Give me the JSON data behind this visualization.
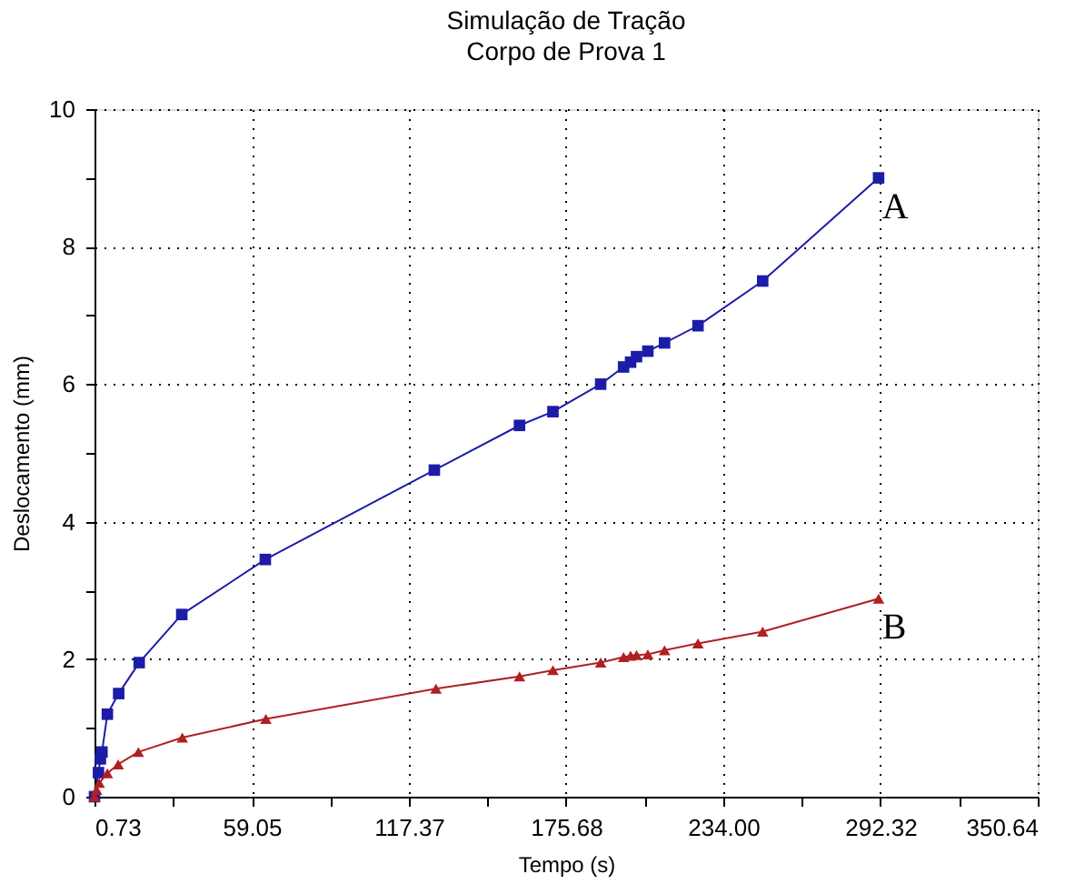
{
  "chart_data": {
    "type": "line",
    "title": "Simulação de Tração",
    "subtitle": "Corpo de Prova 1",
    "xlabel": "Tempo (s)",
    "ylabel": "Deslocamento (mm)",
    "xlim": [
      0.73,
      350.64
    ],
    "ylim": [
      0,
      10
    ],
    "xticks": [
      0.73,
      {
        "value": 29.89,
        "label": null
      },
      59.05,
      {
        "value": 88.21,
        "label": null
      },
      117.37,
      {
        "value": 146.53,
        "label": null
      },
      175.68,
      {
        "value": 204.84,
        "label": null
      },
      {
        "value": 234,
        "label": "234.00"
      },
      {
        "value": 263.16,
        "label": null
      },
      292.32,
      {
        "value": 321.48,
        "label": null
      },
      350.64
    ],
    "yticks": [
      0,
      {
        "value": 1,
        "label": null
      },
      2,
      {
        "value": 3,
        "label": null
      },
      4,
      {
        "value": 5,
        "label": null
      },
      6,
      {
        "value": 7,
        "label": null
      },
      8,
      {
        "value": 9,
        "label": null
      },
      10
    ],
    "grid": true,
    "line_style": "solid",
    "series": [
      {
        "name": "A",
        "color": "#1c1ca8",
        "marker": "square",
        "x": [
          0.73,
          2.2,
          2.9,
          3.5,
          5.5,
          9.7,
          17.3,
          33.1,
          64.1,
          126.8,
          158.4,
          170.8,
          188.5,
          197,
          199.6,
          201.8,
          206,
          212.2,
          224.6,
          248.6,
          291.6
        ],
        "values": [
          0,
          0.35,
          0.55,
          0.65,
          1.2,
          1.5,
          1.95,
          2.65,
          3.45,
          4.75,
          5.4,
          5.6,
          6.0,
          6.25,
          6.32,
          6.4,
          6.48,
          6.6,
          6.85,
          7.5,
          9.0
        ]
      },
      {
        "name": "B",
        "color": "#b02020",
        "marker": "triangle",
        "x": [
          0.73,
          1.5,
          2.5,
          5.5,
          9.5,
          17,
          33.3,
          64.3,
          127.4,
          158.4,
          170.8,
          188.5,
          197,
          199.6,
          201.8,
          206,
          212.2,
          224.6,
          248.6,
          291.6
        ],
        "values": [
          0,
          0.1,
          0.2,
          0.34,
          0.47,
          0.65,
          0.86,
          1.13,
          1.57,
          1.75,
          1.84,
          1.95,
          2.03,
          2.05,
          2.06,
          2.07,
          2.13,
          2.23,
          2.4,
          2.88
        ]
      }
    ]
  }
}
